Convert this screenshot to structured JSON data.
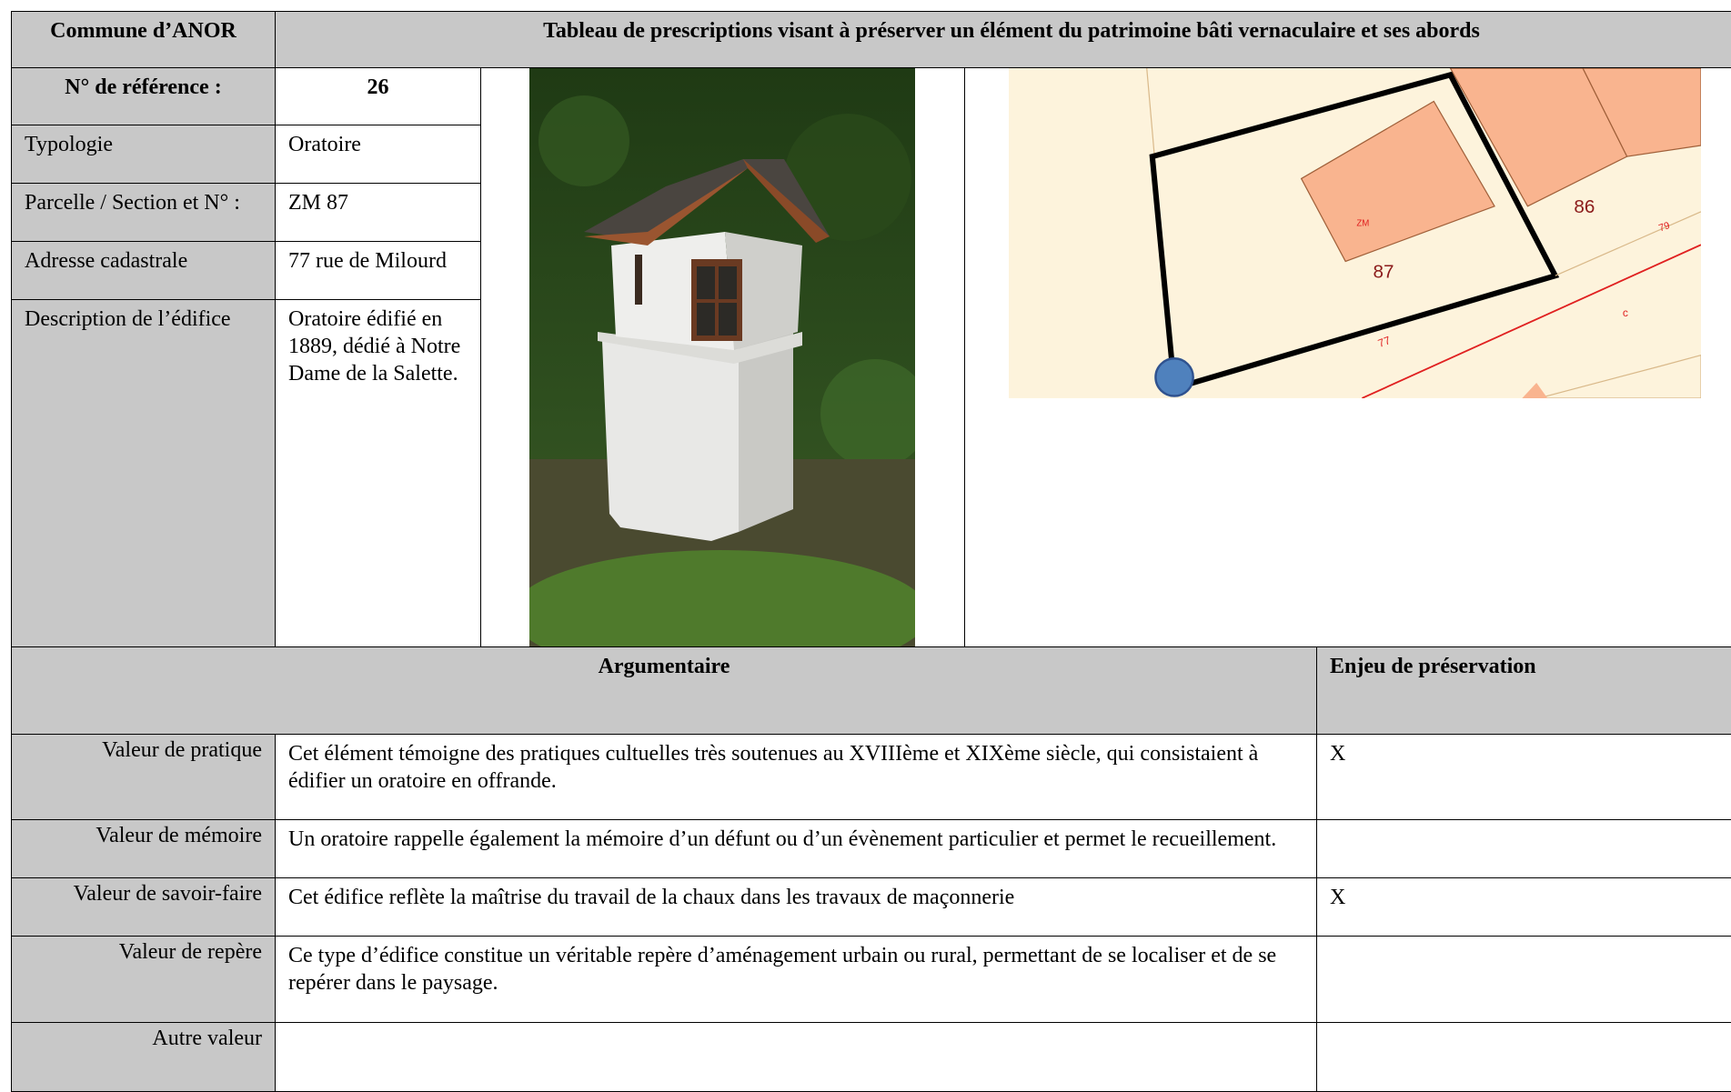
{
  "header": {
    "commune": "Commune d’ANOR",
    "title": "Tableau de prescriptions visant à préserver un élément du patrimoine bâti vernaculaire et ses abords"
  },
  "identity": {
    "rows": [
      {
        "label": "N° de référence :",
        "value": "26"
      },
      {
        "label": "Typologie",
        "value": "Oratoire"
      },
      {
        "label": "Parcelle / Section et N° :",
        "value": "ZM 87"
      },
      {
        "label": "Adresse cadastrale",
        "value": "77 rue de Milourd"
      },
      {
        "label": "Description de l’édifice",
        "value": "Oratoire édifié en 1889, dédié à Notre Dame de la Salette."
      }
    ]
  },
  "map": {
    "parcel": "87",
    "neighbour": "86",
    "section": "ZM",
    "street_number": "77",
    "other_number": "79",
    "road_label": "c"
  },
  "assessment": {
    "headers": [
      "Argumentaire",
      "Enjeu de préservation"
    ],
    "rows": [
      {
        "label": "Valeur de pratique",
        "text": "Cet élément témoigne des pratiques cultuelles très soutenues au XVIIIème et XIXème siècle, qui consistaient à édifier un oratoire en offrande.",
        "enjeu": "X"
      },
      {
        "label": "Valeur de mémoire",
        "text": "Un oratoire rappelle également la mémoire d’un défunt ou d’un évènement particulier et permet le recueillement."
      },
      {
        "label": "Valeur de savoir-faire",
        "text": "Cet édifice reflète la maîtrise du travail de la chaux dans les travaux de maçonnerie",
        "enjeu": "X"
      },
      {
        "label": "Valeur de repère",
        "text": "Ce type d’édifice constitue un véritable repère d’aménagement urbain ou rural, permettant de se localiser et de se repérer dans le paysage."
      },
      {
        "label": "Autre valeur"
      }
    ]
  }
}
